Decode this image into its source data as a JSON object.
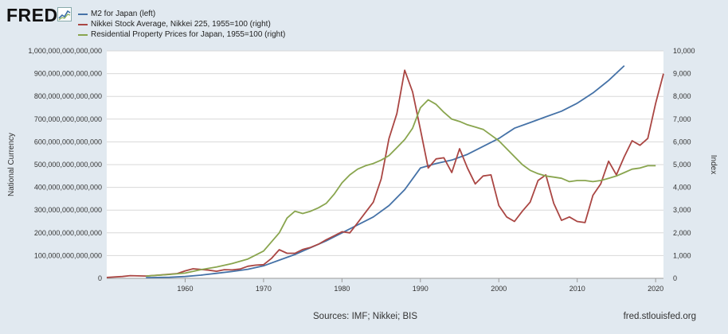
{
  "header": {
    "logo_text": "FRED",
    "logo_icon": "chart-line-icon"
  },
  "footer": {
    "sources": "Sources: IMF; Nikkei; BIS",
    "site": "fred.stlouisfed.org"
  },
  "colors": {
    "background": "#e1e9f0",
    "plot_area": "#ffffff",
    "m2": "#4572a7",
    "nikkei": "#aa4643",
    "property": "#89a54e"
  },
  "chart_data": {
    "type": "line",
    "title": "",
    "xlabel": "",
    "ylabel_left": "National Currency",
    "ylabel_right": "Index",
    "xlim": [
      1950,
      2021
    ],
    "ylim_left": [
      0,
      1000000000000000
    ],
    "ylim_right": [
      0,
      10000
    ],
    "grid": true,
    "legend_position": "top-left",
    "x_ticks": [
      1960,
      1970,
      1980,
      1990,
      2000,
      2010,
      2020
    ],
    "y_left_ticks": [
      "1,000,000,000,000,000",
      "900,000,000,000,000",
      "800,000,000,000,000",
      "700,000,000,000,000",
      "600,000,000,000,000",
      "500,000,000,000,000",
      "400,000,000,000,000",
      "300,000,000,000,000",
      "200,000,000,000,000",
      "100,000,000,000,000",
      "0"
    ],
    "y_right_ticks": [
      "10,000",
      "9,000",
      "8,000",
      "7,000",
      "6,000",
      "5,000",
      "4,000",
      "3,000",
      "2,000",
      "1,000",
      "0"
    ],
    "series": [
      {
        "name": "M2 for Japan (left)",
        "axis": "left",
        "color": "#4572a7",
        "x": [
          1955,
          1958,
          1960,
          1962,
          1964,
          1966,
          1968,
          1970,
          1972,
          1974,
          1976,
          1978,
          1980,
          1982,
          1984,
          1986,
          1988,
          1990,
          1992,
          1994,
          1996,
          1998,
          2000,
          2002,
          2004,
          2006,
          2008,
          2010,
          2012,
          2014,
          2016
        ],
        "y": [
          3000000000000.0,
          5000000000000.0,
          8000000000000.0,
          14000000000000.0,
          22000000000000.0,
          30000000000000.0,
          40000000000000.0,
          55000000000000.0,
          80000000000000.0,
          105000000000000.0,
          135000000000000.0,
          165000000000000.0,
          200000000000000.0,
          235000000000000.0,
          270000000000000.0,
          320000000000000.0,
          390000000000000.0,
          485000000000000.0,
          505000000000000.0,
          520000000000000.0,
          545000000000000.0,
          580000000000000.0,
          615000000000000.0,
          660000000000000.0,
          685000000000000.0,
          710000000000000.0,
          735000000000000.0,
          770000000000000.0,
          815000000000000.0,
          870000000000000.0,
          935000000000000.0
        ]
      },
      {
        "name": "Nikkei Stock Average, Nikkei 225, 1955=100 (right)",
        "axis": "right",
        "color": "#aa4643",
        "x": [
          1950,
          1952,
          1953,
          1955,
          1957,
          1959,
          1960,
          1961,
          1962,
          1963,
          1964,
          1965,
          1966,
          1967,
          1968,
          1969,
          1970,
          1971,
          1972,
          1973,
          1974,
          1975,
          1976,
          1977,
          1978,
          1979,
          1980,
          1981,
          1982,
          1983,
          1984,
          1985,
          1986,
          1987,
          1988,
          1989,
          1990,
          1991,
          1992,
          1993,
          1994,
          1995,
          1996,
          1997,
          1998,
          1999,
          2000,
          2001,
          2002,
          2003,
          2004,
          2005,
          2006,
          2007,
          2008,
          2009,
          2010,
          2011,
          2012,
          2013,
          2014,
          2015,
          2016,
          2017,
          2018,
          2019,
          2020,
          2021
        ],
        "y": [
          40,
          80,
          120,
          100,
          150,
          210,
          330,
          420,
          390,
          360,
          310,
          380,
          370,
          410,
          530,
          580,
          600,
          870,
          1260,
          1100,
          1100,
          1270,
          1360,
          1500,
          1700,
          1870,
          2050,
          2000,
          2440,
          2900,
          3350,
          4370,
          6150,
          7250,
          9150,
          8200,
          6550,
          4850,
          5250,
          5300,
          4650,
          5700,
          4850,
          4150,
          4500,
          4550,
          3200,
          2700,
          2500,
          2950,
          3350,
          4300,
          4550,
          3300,
          2550,
          2700,
          2500,
          2450,
          3650,
          4150,
          5150,
          4550,
          5350,
          6050,
          5850,
          6150,
          7700,
          9000
        ]
      },
      {
        "name": "Residential Property Prices for Japan, 1955=100 (right)",
        "axis": "right",
        "color": "#89a54e",
        "x": [
          1955,
          1958,
          1960,
          1962,
          1964,
          1966,
          1968,
          1970,
          1972,
          1973,
          1974,
          1975,
          1976,
          1977,
          1978,
          1979,
          1980,
          1981,
          1982,
          1983,
          1984,
          1985,
          1986,
          1987,
          1988,
          1989,
          1990,
          1991,
          1992,
          1993,
          1994,
          1995,
          1996,
          1997,
          1998,
          1999,
          2000,
          2001,
          2002,
          2003,
          2004,
          2005,
          2006,
          2007,
          2008,
          2009,
          2010,
          2011,
          2012,
          2013,
          2014,
          2015,
          2016,
          2017,
          2018,
          2019,
          2020
        ],
        "y": [
          100,
          170,
          230,
          380,
          500,
          650,
          850,
          1200,
          2000,
          2650,
          2950,
          2850,
          2950,
          3100,
          3300,
          3700,
          4200,
          4550,
          4800,
          4950,
          5050,
          5200,
          5400,
          5750,
          6100,
          6600,
          7500,
          7850,
          7650,
          7300,
          7000,
          6900,
          6750,
          6650,
          6550,
          6300,
          6050,
          5700,
          5350,
          5000,
          4750,
          4600,
          4500,
          4450,
          4400,
          4250,
          4300,
          4300,
          4250,
          4300,
          4400,
          4500,
          4650,
          4800,
          4850,
          4950,
          4950
        ]
      }
    ]
  }
}
